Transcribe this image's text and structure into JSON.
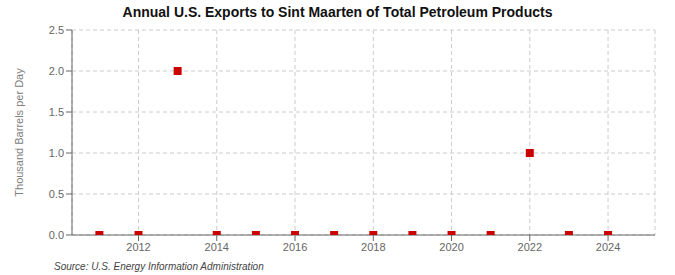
{
  "chart_data": {
    "type": "scatter",
    "title": "Annual U.S. Exports to Sint Maarten of Total Petroleum Products",
    "ylabel": "Thousand Barrels per Day",
    "source": "Source: U.S. Energy Information Administration",
    "x": [
      2011,
      2012,
      2013,
      2014,
      2015,
      2016,
      2017,
      2018,
      2019,
      2020,
      2021,
      2022,
      2023,
      2024
    ],
    "values": [
      0,
      0,
      2,
      0,
      0,
      0,
      0,
      0,
      0,
      0,
      0,
      1,
      0,
      0
    ],
    "color": "#cc0000",
    "marker": "square",
    "xlim": [
      2010.3,
      2025.2
    ],
    "ylim": [
      0,
      2.5
    ],
    "xticks": [
      2012,
      2014,
      2016,
      2018,
      2020,
      2022,
      2024
    ],
    "yticks": [
      {
        "value": 0,
        "label": "0.0"
      },
      0.5,
      {
        "value": 1,
        "label": "1.0"
      },
      1.5,
      {
        "value": 2,
        "label": "2.0"
      },
      2.5
    ],
    "grid": true
  }
}
